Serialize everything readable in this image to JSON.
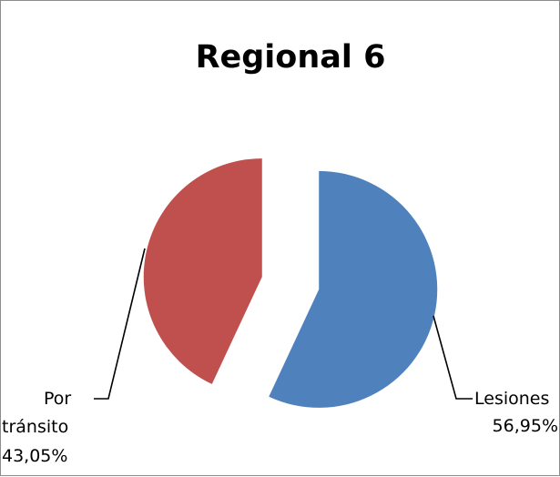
{
  "chart_data": {
    "type": "pie",
    "title": "Regional 6",
    "exploded": true,
    "start_position": "12 o'clock, clockwise",
    "slices": [
      {
        "name": "Lesiones",
        "value": 56.95,
        "label": "56,95%",
        "color": "#4F81BD"
      },
      {
        "name": "Por tránsito",
        "value": 43.05,
        "label": "43,05%",
        "color": "#C0504D"
      }
    ]
  },
  "labels": {
    "lesiones_name": "Lesiones",
    "lesiones_value": "56,95%",
    "transito_name_line1": "Por",
    "transito_name_line2": "tránsito",
    "transito_value": "43,05%"
  }
}
